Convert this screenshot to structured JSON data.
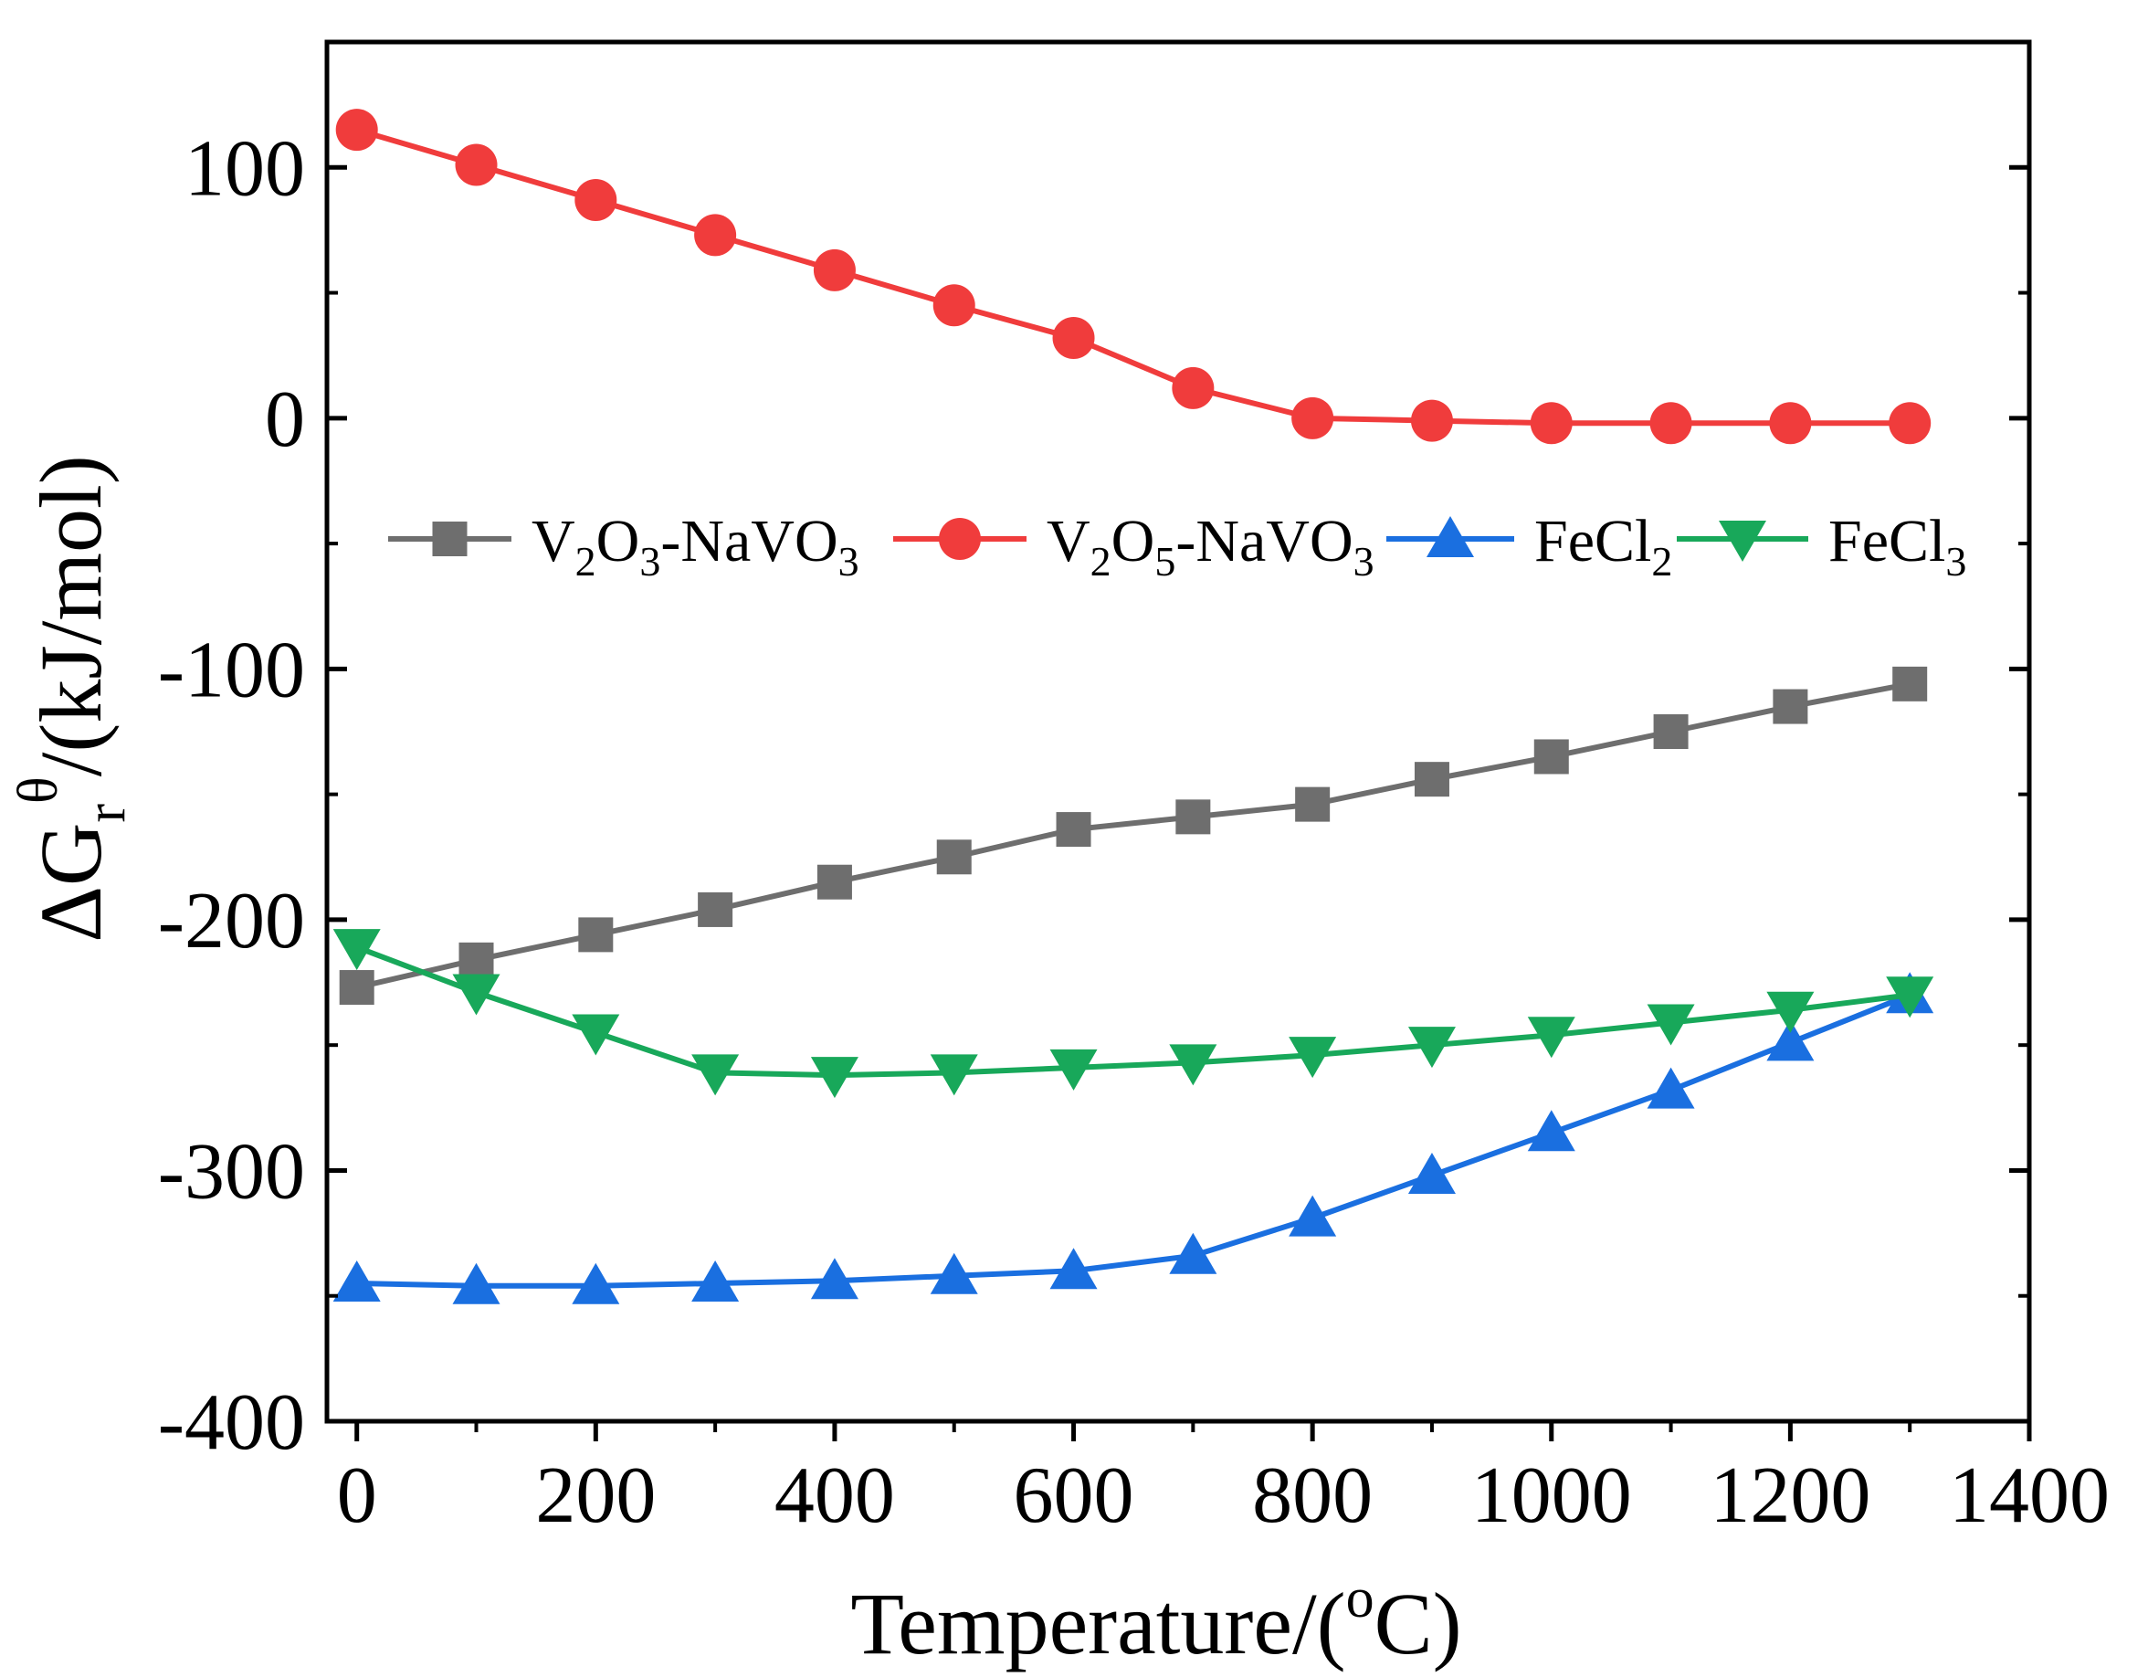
{
  "chart_data": {
    "type": "line",
    "title": "",
    "xlabel": {
      "main": "Temperature/(",
      "sup": "o",
      "tail": "C)"
    },
    "ylabel": {
      "main": "ΔG",
      "sub": "r",
      "sup": "θ",
      "tail": "/(kJ/mol)"
    },
    "xlim": [
      -25,
      1400
    ],
    "ylim": [
      -400,
      150
    ],
    "x_ticks": [
      0,
      200,
      400,
      600,
      800,
      1000,
      1200,
      1400
    ],
    "x_tick_labels": [
      "0",
      "200",
      "400",
      "600",
      "800",
      "1000",
      "1200",
      "1400"
    ],
    "y_ticks": [
      -400,
      -300,
      -200,
      -100,
      0,
      100
    ],
    "y_tick_labels": [
      "-400",
      "-300",
      "-200",
      "-100",
      "0",
      "100"
    ],
    "grid": false,
    "legend_position": "upper-middle, single row",
    "x": [
      0,
      100,
      200,
      300,
      400,
      500,
      600,
      700,
      800,
      900,
      1000,
      1100,
      1200,
      1300
    ],
    "series": [
      {
        "name": "V2O3-NaVO3",
        "label": {
          "parts": [
            [
              "V",
              ""
            ],
            [
              "2",
              "sub"
            ],
            [
              "O",
              ""
            ],
            [
              "3",
              "sub"
            ],
            [
              "-NaVO",
              ""
            ],
            [
              "3",
              "sub"
            ]
          ]
        },
        "color": "#6e6e6e",
        "marker": "square",
        "values": [
          -227,
          -216,
          -206,
          -196,
          -185,
          -175,
          -164,
          -159,
          -154,
          -144,
          -135,
          -125,
          -115,
          -106
        ]
      },
      {
        "name": "V2O5-NaVO3",
        "label": {
          "parts": [
            [
              "V",
              ""
            ],
            [
              "2",
              "sub"
            ],
            [
              "O",
              ""
            ],
            [
              "5",
              "sub"
            ],
            [
              "-NaVO",
              ""
            ],
            [
              "3",
              "sub"
            ]
          ]
        },
        "color": "#f03c3c",
        "marker": "circle",
        "values": [
          115,
          101,
          87,
          73,
          59,
          45,
          32,
          12,
          0,
          -1,
          -2,
          -2,
          -2,
          -2
        ]
      },
      {
        "name": "FeCl2",
        "label": {
          "parts": [
            [
              "FeCl",
              ""
            ],
            [
              "2",
              "sub"
            ]
          ]
        },
        "color": "#1a6fe0",
        "marker": "triangle-up",
        "values": [
          -345,
          -346,
          -346,
          -345,
          -344,
          -342,
          -340,
          -334,
          -319,
          -302,
          -285,
          -268,
          -249,
          -230
        ]
      },
      {
        "name": "FeCl3",
        "label": {
          "parts": [
            [
              "FeCl",
              ""
            ],
            [
              "3",
              "sub"
            ]
          ]
        },
        "color": "#18a85a",
        "marker": "triangle-down",
        "values": [
          -211,
          -229,
          -245,
          -261,
          -262,
          -261,
          -259,
          -257,
          -254,
          -250,
          -246,
          -241,
          -236,
          -230
        ]
      }
    ]
  }
}
